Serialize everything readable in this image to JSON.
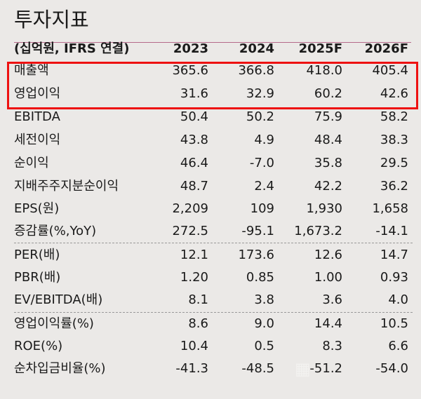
{
  "title": "투자지표",
  "header": {
    "label": "(십억원, IFRS 연결)",
    "columns": [
      "2023",
      "2024",
      "2025F",
      "2026F"
    ]
  },
  "rows": [
    {
      "label": "매출액",
      "values": [
        "365.6",
        "366.8",
        "418.0",
        "405.4"
      ]
    },
    {
      "label": "영업이익",
      "values": [
        "31.6",
        "32.9",
        "60.2",
        "42.6"
      ]
    },
    {
      "label": "EBITDA",
      "values": [
        "50.4",
        "50.2",
        "75.9",
        "58.2"
      ]
    },
    {
      "label": "세전이익",
      "values": [
        "43.8",
        "4.9",
        "48.4",
        "38.3"
      ]
    },
    {
      "label": "순이익",
      "values": [
        "46.4",
        "-7.0",
        "35.8",
        "29.5"
      ]
    },
    {
      "label": "지배주주지분순이익",
      "values": [
        "48.7",
        "2.4",
        "42.2",
        "36.2"
      ]
    },
    {
      "label": "EPS(원)",
      "values": [
        "2,209",
        "109",
        "1,930",
        "1,658"
      ]
    },
    {
      "label": " 증감률(%,YoY)",
      "values": [
        "272.5",
        "-95.1",
        "1,673.2",
        "-14.1"
      ]
    },
    {
      "label": "PER(배)",
      "values": [
        "12.1",
        "173.6",
        "12.6",
        "14.7"
      ]
    },
    {
      "label": "PBR(배)",
      "values": [
        "1.20",
        "0.85",
        "1.00",
        "0.93"
      ]
    },
    {
      "label": "EV/EBITDA(배)",
      "values": [
        "8.1",
        "3.8",
        "3.6",
        "4.0"
      ]
    },
    {
      "label": "영업이익률(%)",
      "values": [
        "8.6",
        "9.0",
        "14.4",
        "10.5"
      ]
    },
    {
      "label": "ROE(%)",
      "values": [
        "10.4",
        "0.5",
        "8.3",
        "6.6"
      ]
    },
    {
      "label": "순차입금비율(%)",
      "values": [
        "-41.3",
        "-48.5",
        "-51.2",
        "-54.0"
      ]
    }
  ],
  "highlight_color": "#ee1111",
  "watermark": "대가뉴스"
}
